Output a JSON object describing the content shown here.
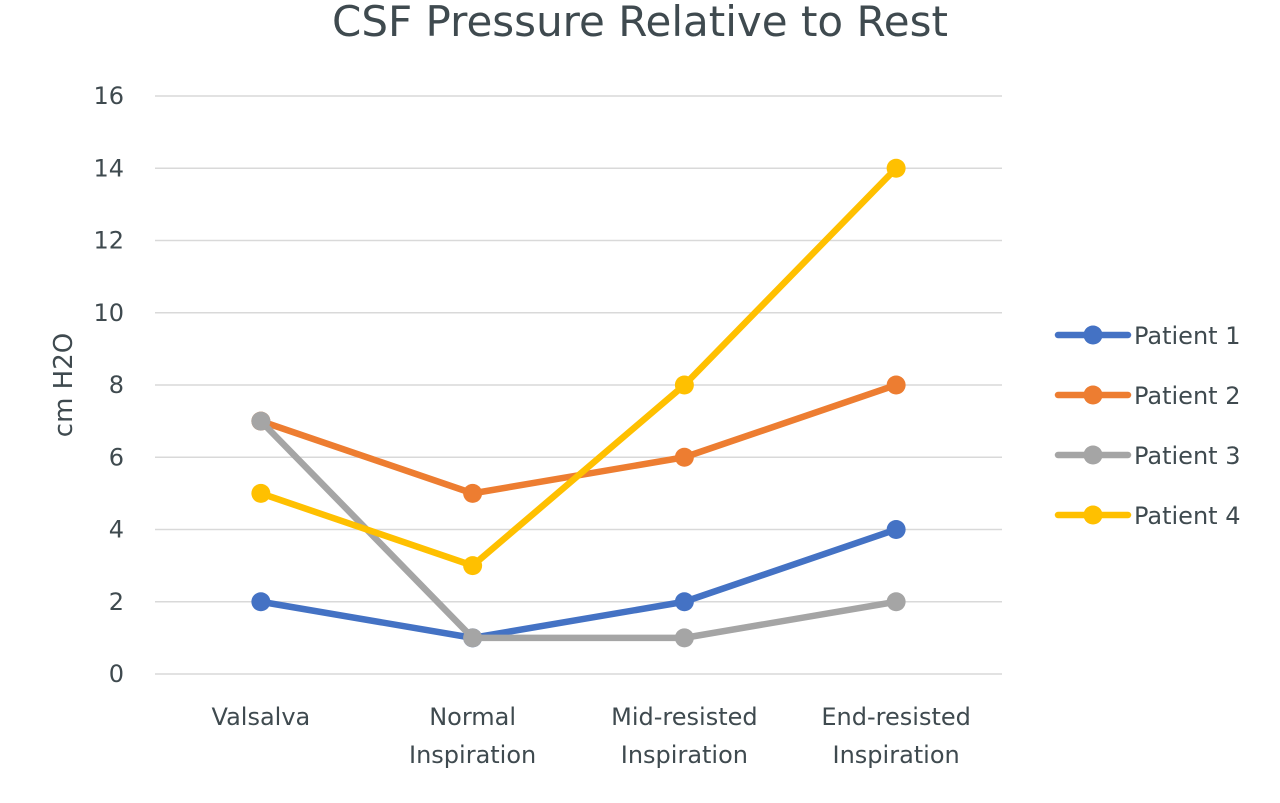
{
  "chart_data": {
    "type": "line",
    "title": "CSF Pressure Relative to Rest",
    "xlabel": "",
    "ylabel": "cm H2O",
    "ylim": [
      0,
      16
    ],
    "yticks": [
      "0",
      "2",
      "4",
      "6",
      "8",
      "10",
      "12",
      "14",
      "16"
    ],
    "categories": [
      [
        "Valsalva"
      ],
      [
        "Normal",
        "Inspiration"
      ],
      [
        "Mid-resisted",
        "Inspiration"
      ],
      [
        "End-resisted",
        "Inspiration"
      ]
    ],
    "series": [
      {
        "name": "Patient 1",
        "color": "#4472c4",
        "values": [
          2,
          1,
          2,
          4
        ]
      },
      {
        "name": "Patient 2",
        "color": "#ed7d31",
        "values": [
          7,
          5,
          6,
          8
        ]
      },
      {
        "name": "Patient 3",
        "color": "#a5a5a5",
        "values": [
          7,
          1,
          1,
          2
        ]
      },
      {
        "name": "Patient 4",
        "color": "#ffc000",
        "values": [
          5,
          3,
          8,
          14
        ]
      }
    ],
    "grid": true,
    "legend": "right"
  }
}
